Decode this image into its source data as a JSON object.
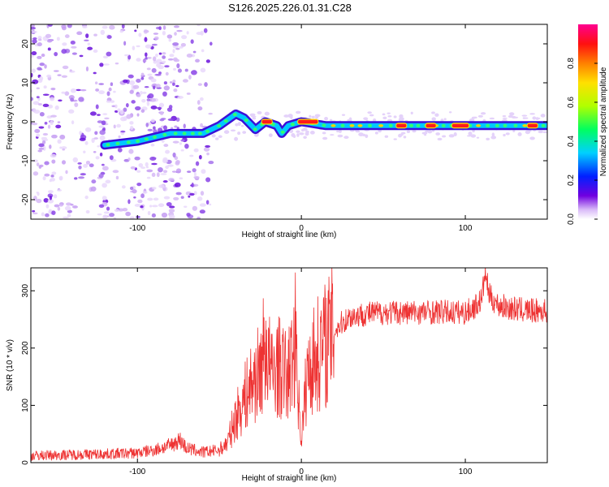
{
  "figure": {
    "title": "S126.2025.226.01.31.C28"
  },
  "chart_data": [
    {
      "type": "heatmap",
      "title": "S126.2025.226.01.31.C28",
      "xlabel": "Height of straight line (km)",
      "ylabel": "Frequency (Hz)",
      "xlim": [
        -165,
        150
      ],
      "ylim": [
        -25,
        25
      ],
      "x_ticks": [
        -100,
        0,
        100
      ],
      "x_tick_labels": [
        "-100",
        "0",
        "100"
      ],
      "y_ticks": [
        -20,
        -10,
        0,
        10,
        20
      ],
      "y_tick_labels": [
        "-20",
        "-10",
        "0",
        "10",
        "20"
      ],
      "colorbar": {
        "label": "Normalized spectral amplitude",
        "range": [
          0,
          1
        ],
        "ticks": [
          0.0,
          0.2,
          0.4,
          0.6,
          0.8
        ],
        "tick_labels": [
          "0.0",
          "0.2",
          "0.4",
          "0.6",
          "0.8"
        ],
        "colormap": [
          "#ffffff",
          "#7000e0",
          "#0020ff",
          "#00d0ff",
          "#00ff60",
          "#b0ff00",
          "#ffe000",
          "#ff8000",
          "#ff1010",
          "#ff0090"
        ]
      },
      "ridge": {
        "description": "dominant frequency ridge",
        "points": [
          {
            "x": -120,
            "y": -6
          },
          {
            "x": -100,
            "y": -5
          },
          {
            "x": -80,
            "y": -3
          },
          {
            "x": -60,
            "y": -3
          },
          {
            "x": -50,
            "y": -1
          },
          {
            "x": -40,
            "y": 2
          },
          {
            "x": -35,
            "y": 1
          },
          {
            "x": -28,
            "y": -2
          },
          {
            "x": -22,
            "y": 0
          },
          {
            "x": -15,
            "y": -1
          },
          {
            "x": -12,
            "y": -3
          },
          {
            "x": -8,
            "y": -1
          },
          {
            "x": 0,
            "y": 0
          },
          {
            "x": 15,
            "y": -1
          },
          {
            "x": 150,
            "y": -1
          }
        ],
        "strong_segments": [
          {
            "x_from": -24,
            "x_to": -18,
            "y": 0
          },
          {
            "x_from": -2,
            "x_to": 10,
            "y": 0
          },
          {
            "x_from": 58,
            "x_to": 64,
            "y": -1
          },
          {
            "x_from": 76,
            "x_to": 82,
            "y": -1
          },
          {
            "x_from": 92,
            "x_to": 102,
            "y": -1
          },
          {
            "x_from": 138,
            "x_to": 144,
            "y": -1
          }
        ],
        "noise_region_x": [
          -165,
          -55
        ]
      }
    },
    {
      "type": "line",
      "title": "",
      "xlabel": "Height of straight line (km)",
      "ylabel": "SNR (10 * v/v)",
      "xlim": [
        -165,
        150
      ],
      "ylim": [
        0,
        340
      ],
      "x_ticks": [
        -100,
        0,
        100
      ],
      "x_tick_labels": [
        "-100",
        "0",
        "100"
      ],
      "y_ticks": [
        0,
        100,
        200,
        300
      ],
      "y_tick_labels": [
        "0",
        "100",
        "200",
        "300"
      ],
      "color": "#ee3333",
      "series": [
        {
          "name": "SNR",
          "x": [
            -165,
            -140,
            -120,
            -100,
            -90,
            -80,
            -74,
            -70,
            -60,
            -50,
            -45,
            -40,
            -35,
            -30,
            -25,
            -22,
            -20,
            -18,
            -15,
            -12,
            -8,
            -5,
            -3,
            -2,
            0,
            3,
            5,
            10,
            15,
            20,
            25,
            30,
            40,
            50,
            60,
            80,
            100,
            105,
            110,
            112,
            115,
            120,
            130,
            140,
            150
          ],
          "values": [
            12,
            14,
            15,
            17,
            22,
            30,
            40,
            25,
            18,
            22,
            35,
            80,
            110,
            140,
            160,
            210,
            180,
            150,
            170,
            160,
            150,
            190,
            230,
            120,
            40,
            140,
            170,
            190,
            210,
            230,
            245,
            255,
            260,
            262,
            262,
            263,
            262,
            270,
            285,
            330,
            290,
            275,
            268,
            265,
            265
          ]
        }
      ]
    }
  ]
}
